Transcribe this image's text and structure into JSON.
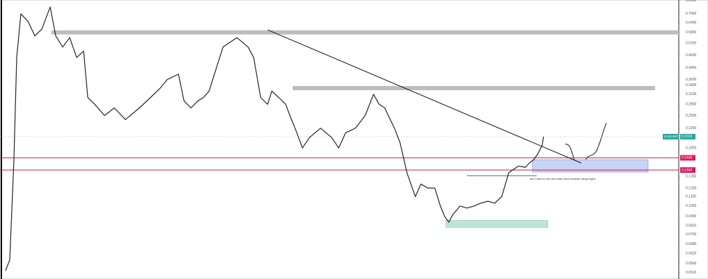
{
  "chart_data": {
    "type": "line",
    "log_scale": true,
    "color": "#222222",
    "x": [
      4,
      7,
      10,
      12,
      15,
      20,
      25,
      30,
      36,
      40,
      45,
      50,
      55,
      60,
      63,
      68,
      75,
      82,
      90,
      100,
      108,
      115,
      120,
      128,
      132,
      137,
      142,
      146,
      150,
      160,
      170,
      178,
      182,
      187,
      192,
      195,
      200,
      205,
      208,
      213,
      217,
      222,
      230,
      238,
      243,
      248,
      255,
      262,
      268,
      272,
      276,
      280,
      283,
      287,
      292,
      298,
      302,
      307,
      312,
      316,
      319,
      322,
      325,
      327,
      330,
      335,
      340,
      345,
      350,
      355,
      360,
      365,
      372,
      377,
      380,
      383,
      386,
      389,
      390
    ],
    "values": [
      0.052,
      0.058,
      0.16,
      0.45,
      0.7,
      0.65,
      0.56,
      0.6,
      0.75,
      0.56,
      0.5,
      0.55,
      0.45,
      0.48,
      0.3,
      0.28,
      0.25,
      0.27,
      0.24,
      0.27,
      0.3,
      0.33,
      0.36,
      0.38,
      0.29,
      0.27,
      0.29,
      0.3,
      0.32,
      0.5,
      0.55,
      0.5,
      0.45,
      0.3,
      0.28,
      0.32,
      0.3,
      0.28,
      0.25,
      0.21,
      0.18,
      0.2,
      0.22,
      0.2,
      0.18,
      0.21,
      0.22,
      0.25,
      0.31,
      0.28,
      0.27,
      0.24,
      0.22,
      0.19,
      0.14,
      0.11,
      0.125,
      0.12,
      0.12,
      0.1,
      0.09,
      0.085,
      0.092,
      0.095,
      0.1,
      0.098,
      0.1,
      0.103,
      0.105,
      0.103,
      0.11,
      0.14,
      0.15,
      0.148,
      0.155,
      0.16,
      0.17,
      0.185,
      0.2019
    ],
    "xlim": [
      0,
      487
    ],
    "ylim": [
      0.0478,
      0.805
    ],
    "yticks": [
      {
        "value": 0.8,
        "label": "0.8000"
      },
      {
        "value": 0.7,
        "label": "0.7000"
      },
      {
        "value": 0.64,
        "label": "0.6400"
      },
      {
        "value": 0.58,
        "label": "0.5800"
      },
      {
        "value": 0.52,
        "label": "0.5200"
      },
      {
        "value": 0.46,
        "label": "0.4600"
      },
      {
        "value": 0.405,
        "label": "0.4050"
      },
      {
        "value": 0.36,
        "label": "0.3600"
      },
      {
        "value": 0.34,
        "label": "0.3400"
      },
      {
        "value": 0.31,
        "label": "0.3100"
      },
      {
        "value": 0.28,
        "label": "0.2800"
      },
      {
        "value": 0.25,
        "label": "0.2500"
      },
      {
        "value": 0.22,
        "label": "0.2200"
      },
      {
        "value": 0.18,
        "label": "0.1800"
      },
      {
        "value": 0.135,
        "label": "0.1350"
      },
      {
        "value": 0.12,
        "label": "0.1200"
      },
      {
        "value": 0.11,
        "label": "0.1100"
      },
      {
        "value": 0.1,
        "label": "0.1000"
      },
      {
        "value": 0.09,
        "label": "0.0900"
      },
      {
        "value": 0.082,
        "label": "0.0820"
      },
      {
        "value": 0.075,
        "label": "0.0750"
      },
      {
        "value": 0.068,
        "label": "0.0680"
      },
      {
        "value": 0.062,
        "label": "0.0620"
      },
      {
        "value": 0.056,
        "label": "0.0560"
      },
      {
        "value": 0.051,
        "label": "0.0510"
      }
    ],
    "symbol": "CHZUSDT",
    "last_price": {
      "value": 0.2019,
      "label": "0.2019"
    },
    "range_levels": [
      {
        "value": 0.163,
        "label": "0.1630"
      },
      {
        "value": 0.144,
        "label": "0.1440"
      }
    ],
    "resistance_bands": [
      {
        "x": [
          37,
          487
        ],
        "value": 0.58
      },
      {
        "x": [
          210,
          470
        ],
        "value": 0.33
      }
    ],
    "range_box": {
      "x": [
        382,
        465
      ],
      "y": [
        0.141,
        0.16
      ]
    },
    "support_box": {
      "x": [
        320,
        393
      ],
      "y": [
        0.0805,
        0.0865
      ]
    },
    "range_top": {
      "x": [
        335,
        385
      ],
      "value": 0.136
    },
    "trendline": {
      "x": [
        192,
        417
      ],
      "y": [
        0.595,
        0.1546
      ]
    },
    "annotation": "don't want to see this trade back beneath range highs"
  }
}
